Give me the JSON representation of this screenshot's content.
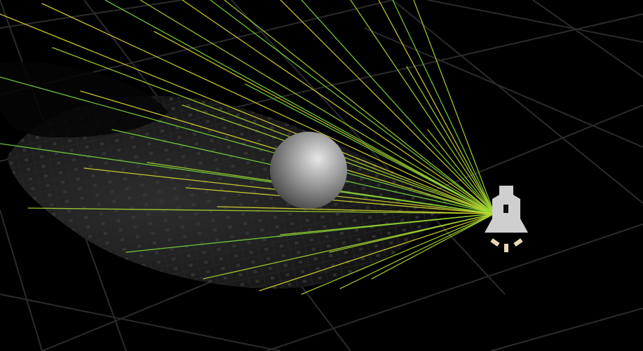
{
  "viewport": {
    "background_color": "#000000"
  },
  "scene": {
    "ground_grid": {
      "line_color": "#2b2b2b",
      "visible": true
    },
    "shadow_surface": {
      "color": "#141414",
      "tile_color": "#262626"
    },
    "sphere": {
      "highlight_color": "#e6e6e6",
      "base_color": "#8a8a8a",
      "shade_color": "#3c3c3c"
    },
    "light_rays": {
      "near_color": "#7ad83a",
      "mid_color": "#a8d830",
      "far_color": "#d8d830",
      "ray_count": 36
    },
    "spot_light_gizmo": {
      "icon": "spot-light-icon",
      "color": "#cfcfcf",
      "accent_color": "#e8d8b8"
    }
  }
}
